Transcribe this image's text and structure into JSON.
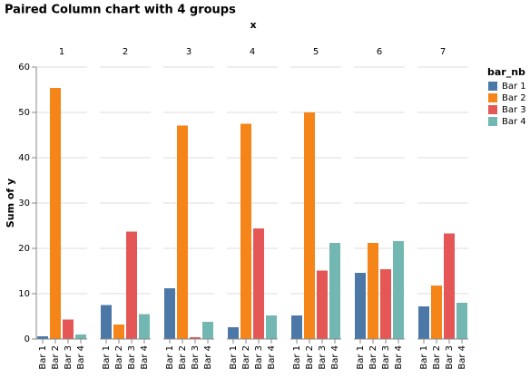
{
  "chart_data": {
    "type": "grouped-bar",
    "title": "Paired Column chart with 4 groups",
    "column_title": "x",
    "y_label": "Sum of y",
    "legend_title": "bar_nb",
    "legend_position": "right",
    "grid": true,
    "categories": [
      1,
      2,
      3,
      4,
      5,
      6,
      7
    ],
    "ylim": [
      0,
      60
    ],
    "yticks": [
      0,
      10,
      20,
      30,
      40,
      50,
      60
    ],
    "series": [
      {
        "name": "Bar 1",
        "color": "#4c78a8",
        "values": [
          0.6,
          7.5,
          11.2,
          2.6,
          5.2,
          14.6,
          7.2
        ]
      },
      {
        "name": "Bar 2",
        "color": "#f58518",
        "values": [
          55.4,
          3.2,
          47.1,
          47.5,
          50.0,
          21.2,
          11.8
        ]
      },
      {
        "name": "Bar 3",
        "color": "#e45756",
        "values": [
          4.3,
          23.7,
          0.4,
          24.4,
          15.1,
          15.4,
          23.3
        ]
      },
      {
        "name": "Bar 4",
        "color": "#72b7b2",
        "values": [
          1.0,
          5.5,
          3.8,
          5.2,
          21.2,
          21.6,
          8.0
        ]
      }
    ]
  }
}
